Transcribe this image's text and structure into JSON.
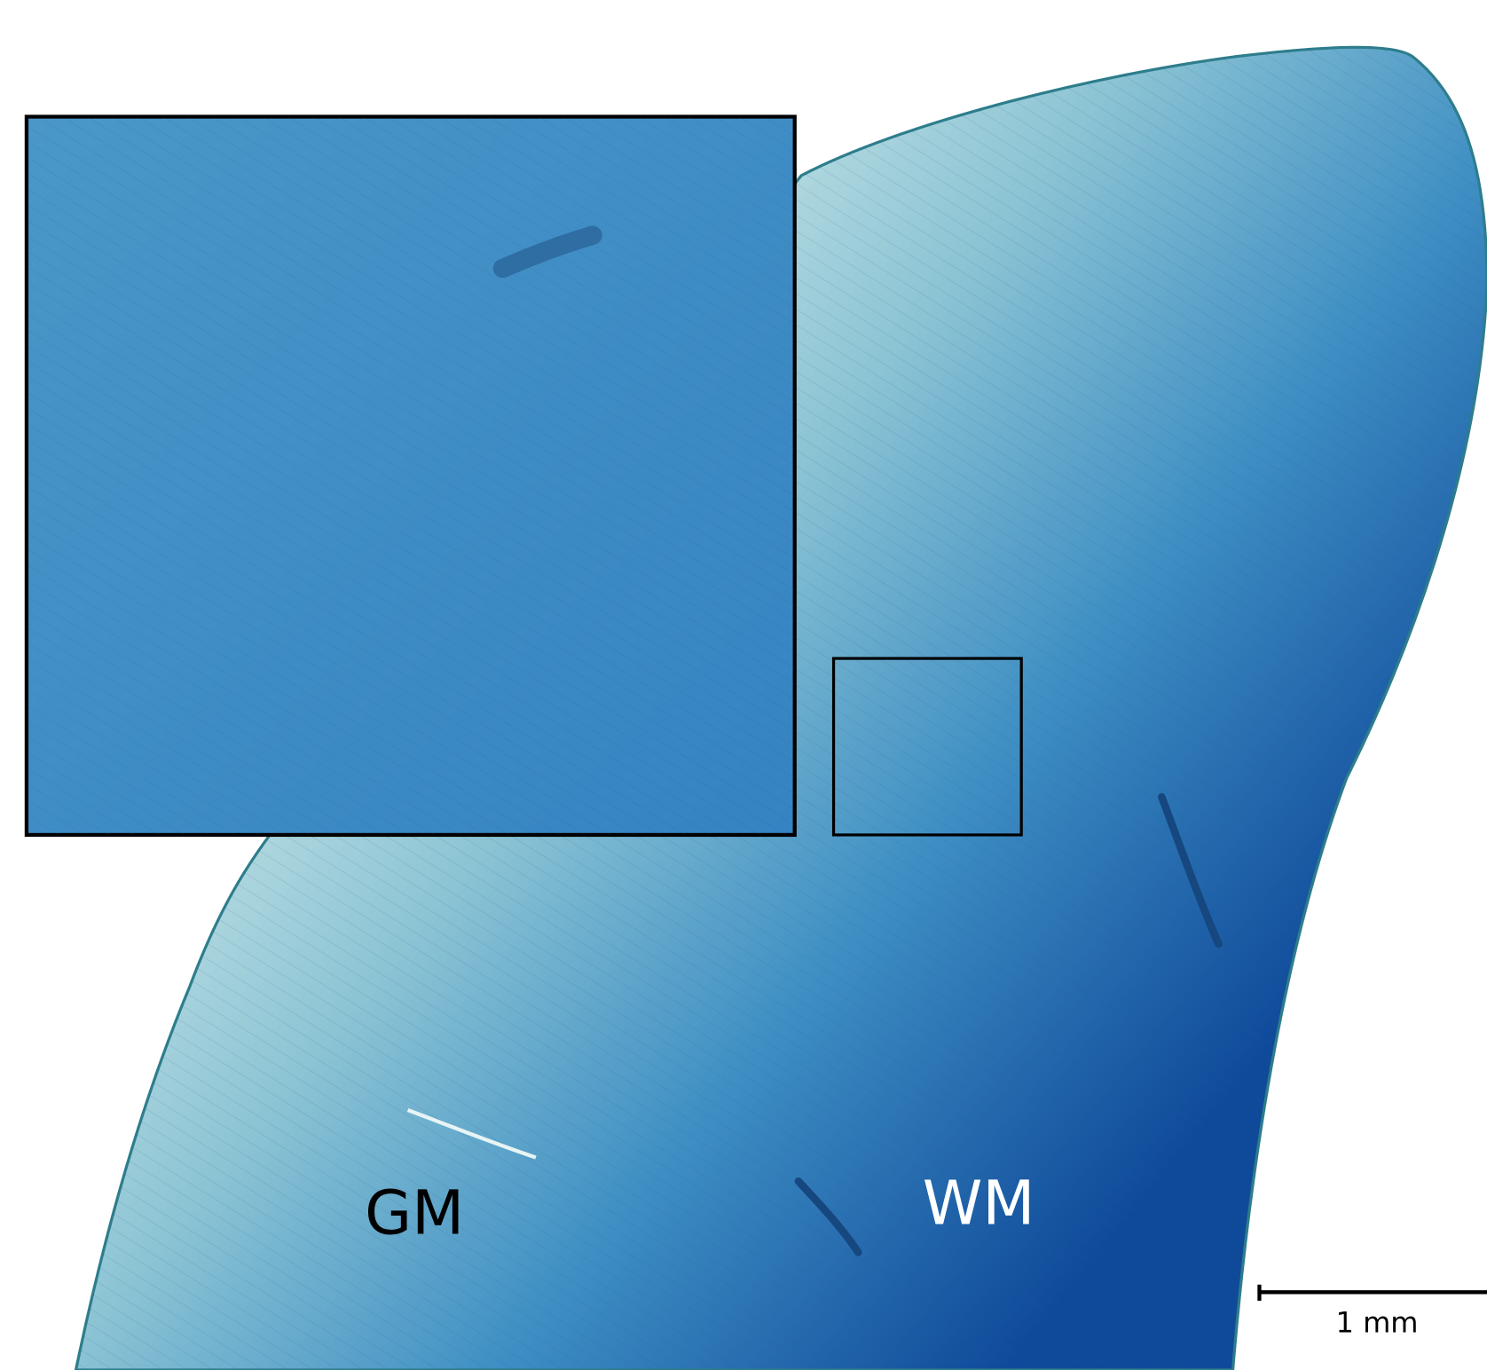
{
  "labels": {
    "gm": "GM",
    "wm": "WM"
  },
  "scale_bar": {
    "label": "1 mm"
  }
}
